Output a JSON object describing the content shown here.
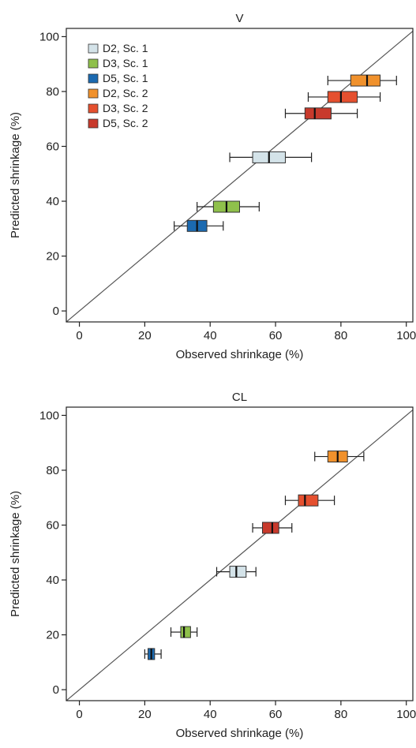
{
  "chart_data": [
    {
      "type": "box",
      "title": "V",
      "xlabel": "Observed shrinkage (%)",
      "ylabel": "Predicted shrinkage (%)",
      "xlim": [
        -4,
        102
      ],
      "ylim": [
        -4,
        103
      ],
      "xticks": [
        0,
        20,
        40,
        60,
        80,
        100
      ],
      "yticks": [
        0,
        20,
        40,
        60,
        80,
        100
      ],
      "identity_line": true,
      "grid": false,
      "legend_position": "top-left",
      "series": [
        {
          "name": "D2, Sc. 1",
          "color": "#d4e3e9",
          "y": 56,
          "box": [
            53,
            63
          ],
          "median": 58,
          "whisker": [
            46,
            71
          ]
        },
        {
          "name": "D3, Sc. 1",
          "color": "#8fc04b",
          "y": 38,
          "box": [
            41,
            49
          ],
          "median": 45,
          "whisker": [
            36,
            55
          ]
        },
        {
          "name": "D5, Sc. 1",
          "color": "#1b6ab1",
          "y": 31,
          "box": [
            33,
            39
          ],
          "median": 36,
          "whisker": [
            29,
            44
          ]
        },
        {
          "name": "D2, Sc. 2",
          "color": "#f0912c",
          "y": 84,
          "box": [
            83,
            92
          ],
          "median": 88,
          "whisker": [
            76,
            97
          ]
        },
        {
          "name": "D3, Sc. 2",
          "color": "#e5502f",
          "y": 78,
          "box": [
            76,
            85
          ],
          "median": 80,
          "whisker": [
            70,
            92
          ]
        },
        {
          "name": "D5, Sc. 2",
          "color": "#c83a2c",
          "y": 72,
          "box": [
            69,
            77
          ],
          "median": 72,
          "whisker": [
            63,
            85
          ]
        }
      ]
    },
    {
      "type": "box",
      "title": "CL",
      "xlabel": "Observed shrinkage (%)",
      "ylabel": "Predicted shrinkage (%)",
      "xlim": [
        -4,
        102
      ],
      "ylim": [
        -4,
        103
      ],
      "xticks": [
        0,
        20,
        40,
        60,
        80,
        100
      ],
      "yticks": [
        0,
        20,
        40,
        60,
        80,
        100
      ],
      "identity_line": true,
      "grid": false,
      "series": [
        {
          "name": "D2, Sc. 1",
          "color": "#d4e3e9",
          "y": 43,
          "box": [
            46,
            51
          ],
          "median": 48,
          "whisker": [
            42,
            54
          ]
        },
        {
          "name": "D3, Sc. 1",
          "color": "#8fc04b",
          "y": 21,
          "box": [
            31,
            34
          ],
          "median": 32,
          "whisker": [
            28,
            36
          ]
        },
        {
          "name": "D5, Sc. 1",
          "color": "#1b6ab1",
          "y": 13,
          "box": [
            21,
            23
          ],
          "median": 22,
          "whisker": [
            20,
            25
          ]
        },
        {
          "name": "D2, Sc. 2",
          "color": "#f0912c",
          "y": 85,
          "box": [
            76,
            82
          ],
          "median": 79,
          "whisker": [
            72,
            87
          ]
        },
        {
          "name": "D3, Sc. 2",
          "color": "#e5502f",
          "y": 69,
          "box": [
            67,
            73
          ],
          "median": 69,
          "whisker": [
            63,
            78
          ]
        },
        {
          "name": "D5, Sc. 2",
          "color": "#c83a2c",
          "y": 59,
          "box": [
            56,
            61
          ],
          "median": 59,
          "whisker": [
            53,
            65
          ]
        }
      ]
    }
  ]
}
